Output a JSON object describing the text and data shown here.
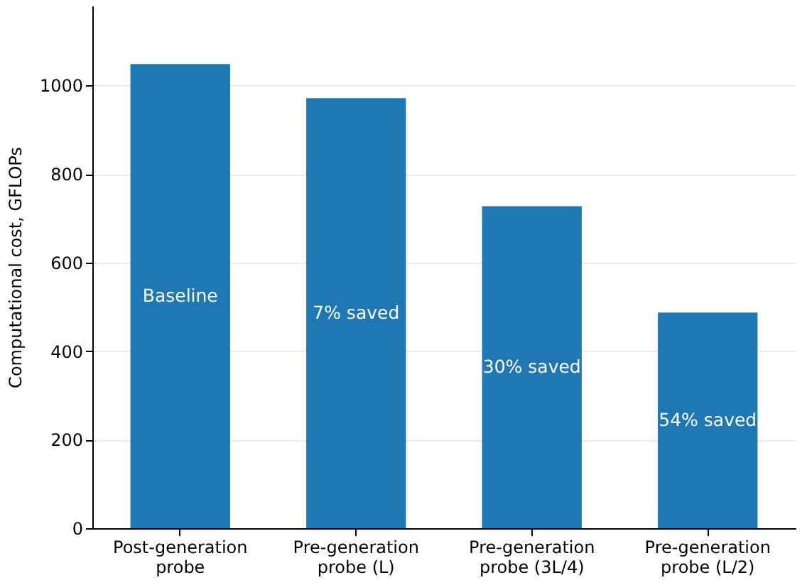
{
  "chart_data": {
    "type": "bar",
    "ylabel": "Computational cost, GFLOPs",
    "categories": [
      "Post-generation probe",
      "Pre-generation probe (L)",
      "Pre-generation probe (3L/4)",
      "Pre-generation probe (L/2)"
    ],
    "values": [
      1048,
      971,
      727,
      487
    ],
    "color": "#1f77b4",
    "ylim": [
      0,
      1180
    ],
    "yticks": [
      0,
      200,
      400,
      600,
      800,
      1000
    ],
    "grid": "y",
    "annotations": [
      "Baseline",
      "7% saved",
      "30% saved",
      "54% saved"
    ]
  }
}
